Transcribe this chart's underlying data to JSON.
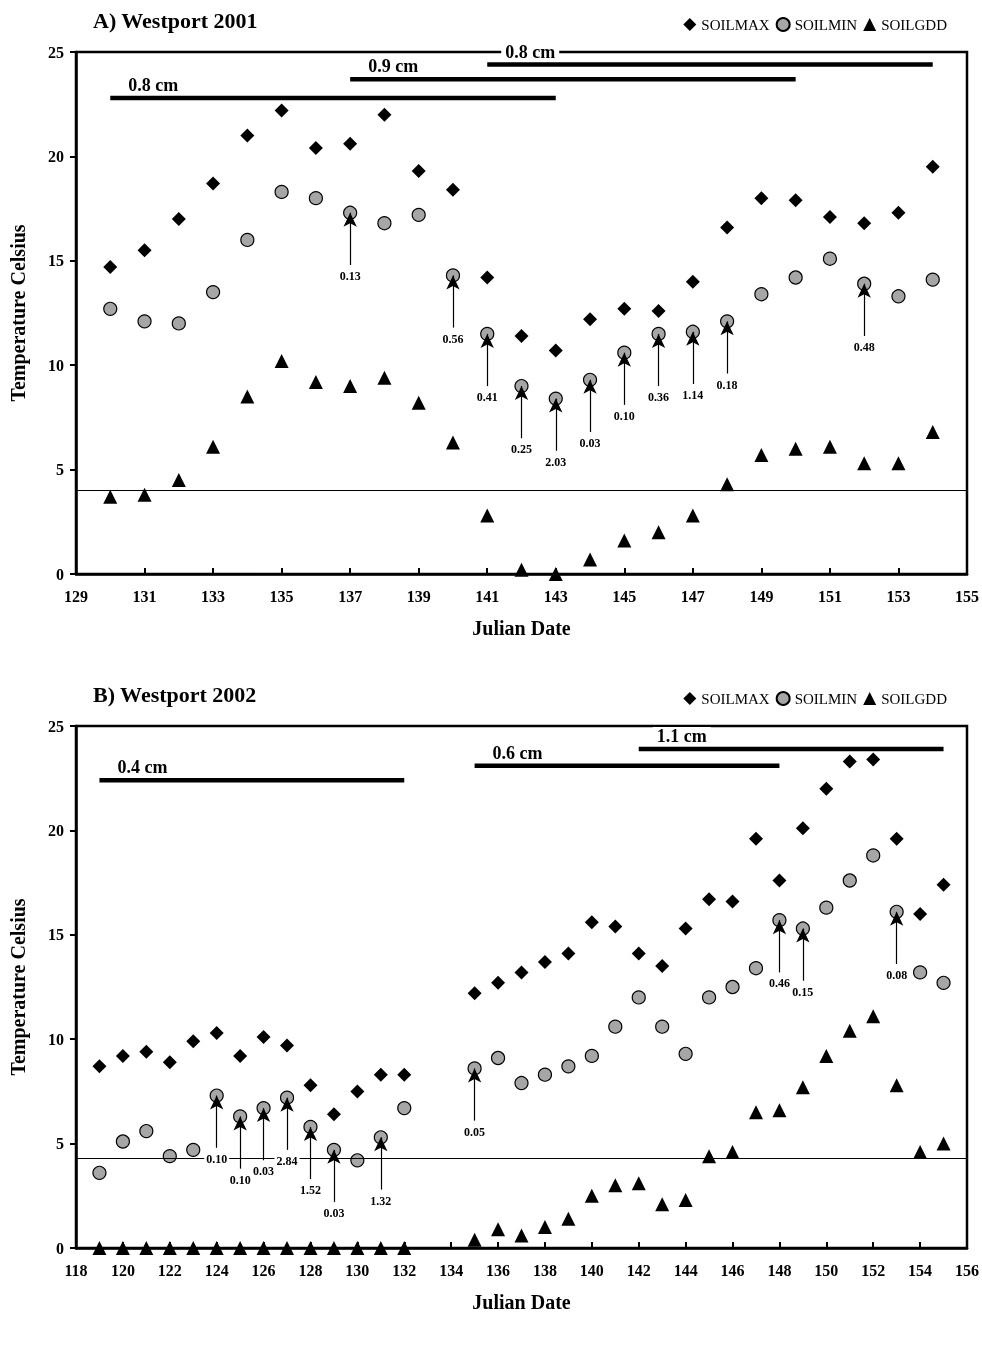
{
  "chart_data": [
    {
      "type": "scatter",
      "title": "A) Westport 2001",
      "xlabel": "Julian Date",
      "ylabel": "Temperature Celsius",
      "xlim": [
        129,
        155
      ],
      "xticks": [
        129,
        131,
        133,
        135,
        137,
        139,
        141,
        143,
        145,
        147,
        149,
        151,
        153,
        155
      ],
      "ylim": [
        0,
        25
      ],
      "yticks": [
        0,
        5,
        10,
        15,
        20,
        25
      ],
      "grid": false,
      "legend": "top right",
      "series": [
        {
          "name": "SOILMAX",
          "color": "#000000",
          "marker": "diamond",
          "x": [
            130,
            131,
            132,
            133,
            134,
            135,
            136,
            137,
            138,
            139,
            140,
            141,
            142,
            143,
            144,
            145,
            146,
            147,
            148,
            149,
            150,
            151,
            152,
            153,
            154
          ],
          "values": [
            14.7,
            15.5,
            17.0,
            18.7,
            21.0,
            22.2,
            20.4,
            20.6,
            22.0,
            19.3,
            18.4,
            14.2,
            11.4,
            10.7,
            12.2,
            12.7,
            12.6,
            14.0,
            16.6,
            18.0,
            17.9,
            17.1,
            16.8,
            17.3,
            19.5
          ]
        },
        {
          "name": "SOILMIN",
          "color": "#a6a6a6",
          "marker": "circle",
          "x": [
            130,
            131,
            132,
            133,
            134,
            135,
            136,
            137,
            138,
            139,
            140,
            141,
            142,
            143,
            144,
            145,
            146,
            147,
            148,
            149,
            150,
            151,
            152,
            153,
            154
          ],
          "values": [
            12.7,
            12.1,
            12.0,
            13.5,
            16.0,
            18.3,
            18.0,
            17.3,
            16.8,
            17.2,
            14.3,
            11.5,
            9.0,
            8.4,
            9.3,
            10.6,
            11.5,
            11.6,
            12.1,
            13.4,
            14.2,
            15.1,
            13.9,
            13.3,
            14.1
          ]
        },
        {
          "name": "SOILGDD",
          "color": "#000000",
          "marker": "triangle",
          "x": [
            130,
            131,
            132,
            133,
            134,
            135,
            136,
            137,
            138,
            139,
            140,
            141,
            142,
            143,
            144,
            145,
            146,
            147,
            148,
            149,
            150,
            151,
            152,
            153,
            154
          ],
          "values": [
            3.7,
            3.8,
            4.5,
            6.1,
            8.5,
            10.2,
            9.2,
            9.0,
            9.4,
            8.2,
            6.3,
            2.8,
            0.2,
            0.0,
            0.7,
            1.6,
            2.0,
            2.8,
            4.3,
            5.7,
            6.0,
            6.1,
            5.3,
            5.3,
            6.8
          ]
        },
        {
          "type": "line",
          "name": "0.8 cm",
          "color": "#000000",
          "x": [
            130,
            143
          ],
          "values": [
            22.8,
            22.8
          ]
        },
        {
          "type": "line",
          "name": "0.9 cm",
          "color": "#000000",
          "x": [
            137,
            150
          ],
          "values": [
            23.7,
            23.7
          ]
        },
        {
          "type": "line",
          "name": "0.8 cm",
          "color": "#000000",
          "x": [
            141,
            154
          ],
          "values": [
            24.4,
            24.4
          ]
        }
      ],
      "ref_lines": [
        {
          "axis": "y",
          "value": 4
        }
      ],
      "annotations": [
        {
          "text": "0.13",
          "x": 137,
          "y": 17.3
        },
        {
          "text": "0.56",
          "x": 140,
          "y": 14.3
        },
        {
          "text": "0.41",
          "x": 141,
          "y": 11.5
        },
        {
          "text": "0.25",
          "x": 142,
          "y": 9.0
        },
        {
          "text": "2.03",
          "x": 143,
          "y": 8.4
        },
        {
          "text": "0.03",
          "x": 144,
          "y": 9.3
        },
        {
          "text": "0.10",
          "x": 145,
          "y": 10.6
        },
        {
          "text": "0.36",
          "x": 146,
          "y": 11.5
        },
        {
          "text": "1.14",
          "x": 147,
          "y": 11.6
        },
        {
          "text": "0.18",
          "x": 148,
          "y": 12.1
        },
        {
          "text": "0.48",
          "x": 152,
          "y": 13.9
        }
      ]
    },
    {
      "type": "scatter",
      "title": "B) Westport 2002",
      "xlabel": "Julian Date",
      "ylabel": "Temperature Celsius",
      "xlim": [
        118,
        156
      ],
      "xticks": [
        118,
        120,
        122,
        124,
        126,
        128,
        130,
        132,
        134,
        136,
        138,
        140,
        142,
        144,
        146,
        148,
        150,
        152,
        154,
        156
      ],
      "ylim": [
        0,
        25
      ],
      "yticks": [
        0,
        5,
        10,
        15,
        20,
        25
      ],
      "grid": false,
      "legend": "top right",
      "series": [
        {
          "name": "SOILMAX",
          "color": "#000000",
          "marker": "diamond",
          "x": [
            119,
            120,
            121,
            122,
            123,
            124,
            125,
            126,
            127,
            128,
            129,
            130,
            131,
            132,
            135,
            136,
            137,
            138,
            139,
            140,
            141,
            142,
            143,
            144,
            145,
            146,
            147,
            148,
            149,
            150,
            151,
            152,
            153,
            154,
            155
          ],
          "values": [
            8.7,
            9.2,
            9.4,
            8.9,
            9.9,
            10.3,
            9.2,
            10.1,
            9.7,
            7.8,
            6.4,
            7.5,
            8.3,
            8.3,
            12.2,
            12.7,
            13.2,
            13.7,
            14.1,
            15.6,
            15.4,
            14.1,
            13.5,
            15.3,
            16.7,
            16.6,
            19.6,
            17.6,
            20.1,
            22.0,
            23.3,
            23.4,
            19.6,
            16.0,
            17.4
          ]
        },
        {
          "name": "SOILMIN",
          "color": "#a6a6a6",
          "marker": "circle",
          "x": [
            119,
            120,
            121,
            122,
            123,
            124,
            125,
            126,
            127,
            128,
            129,
            130,
            131,
            132,
            135,
            136,
            137,
            138,
            139,
            140,
            141,
            142,
            143,
            144,
            145,
            146,
            147,
            148,
            149,
            150,
            151,
            152,
            153,
            154,
            155
          ],
          "values": [
            3.6,
            5.1,
            5.6,
            4.4,
            4.7,
            7.3,
            6.3,
            6.7,
            7.2,
            5.8,
            4.7,
            4.2,
            5.3,
            6.7,
            8.6,
            9.1,
            7.9,
            8.3,
            8.7,
            9.2,
            10.6,
            12.0,
            10.6,
            9.3,
            12.0,
            12.5,
            13.4,
            15.7,
            15.3,
            16.3,
            17.6,
            18.8,
            16.1,
            13.2,
            12.7
          ]
        },
        {
          "name": "SOILGDD",
          "color": "#000000",
          "marker": "triangle",
          "x": [
            119,
            120,
            121,
            122,
            123,
            124,
            125,
            126,
            127,
            128,
            129,
            130,
            131,
            132,
            135,
            136,
            137,
            138,
            139,
            140,
            141,
            142,
            143,
            144,
            145,
            146,
            147,
            148,
            149,
            150,
            151,
            152,
            153,
            154,
            155
          ],
          "values": [
            0,
            0,
            0,
            0,
            0,
            0,
            0,
            0,
            0,
            0,
            0,
            0,
            0,
            0,
            0.4,
            0.9,
            0.6,
            1.0,
            1.4,
            2.5,
            3.0,
            3.1,
            2.1,
            2.3,
            4.4,
            4.6,
            6.5,
            6.6,
            7.7,
            9.2,
            10.4,
            11.1,
            7.8,
            4.6,
            5.0
          ]
        },
        {
          "type": "line",
          "name": "0.4 cm",
          "color": "#000000",
          "x": [
            119,
            132
          ],
          "values": [
            22.4,
            22.4
          ]
        },
        {
          "type": "line",
          "name": "0.6 cm",
          "color": "#000000",
          "x": [
            135,
            148
          ],
          "values": [
            23.1,
            23.1
          ]
        },
        {
          "type": "line",
          "name": "1.1 cm",
          "color": "#000000",
          "x": [
            142,
            155
          ],
          "values": [
            23.9,
            23.9
          ]
        }
      ],
      "ref_lines": [
        {
          "axis": "y",
          "value": 4.3
        }
      ],
      "annotations": [
        {
          "text": "0.10",
          "x": 124,
          "y": 7.3
        },
        {
          "text": "0.10",
          "x": 125,
          "y": 6.3
        },
        {
          "text": "0.03",
          "x": 126,
          "y": 6.7
        },
        {
          "text": "2.84",
          "x": 127,
          "y": 7.2
        },
        {
          "text": "1.52",
          "x": 128,
          "y": 5.8
        },
        {
          "text": "0.03",
          "x": 129,
          "y": 4.7
        },
        {
          "text": "1.32",
          "x": 131,
          "y": 5.3
        },
        {
          "text": "0.05",
          "x": 135,
          "y": 8.6
        },
        {
          "text": "0.46",
          "x": 148,
          "y": 15.7
        },
        {
          "text": "0.15",
          "x": 149,
          "y": 15.3
        },
        {
          "text": "0.08",
          "x": 153,
          "y": 16.1
        }
      ]
    }
  ]
}
